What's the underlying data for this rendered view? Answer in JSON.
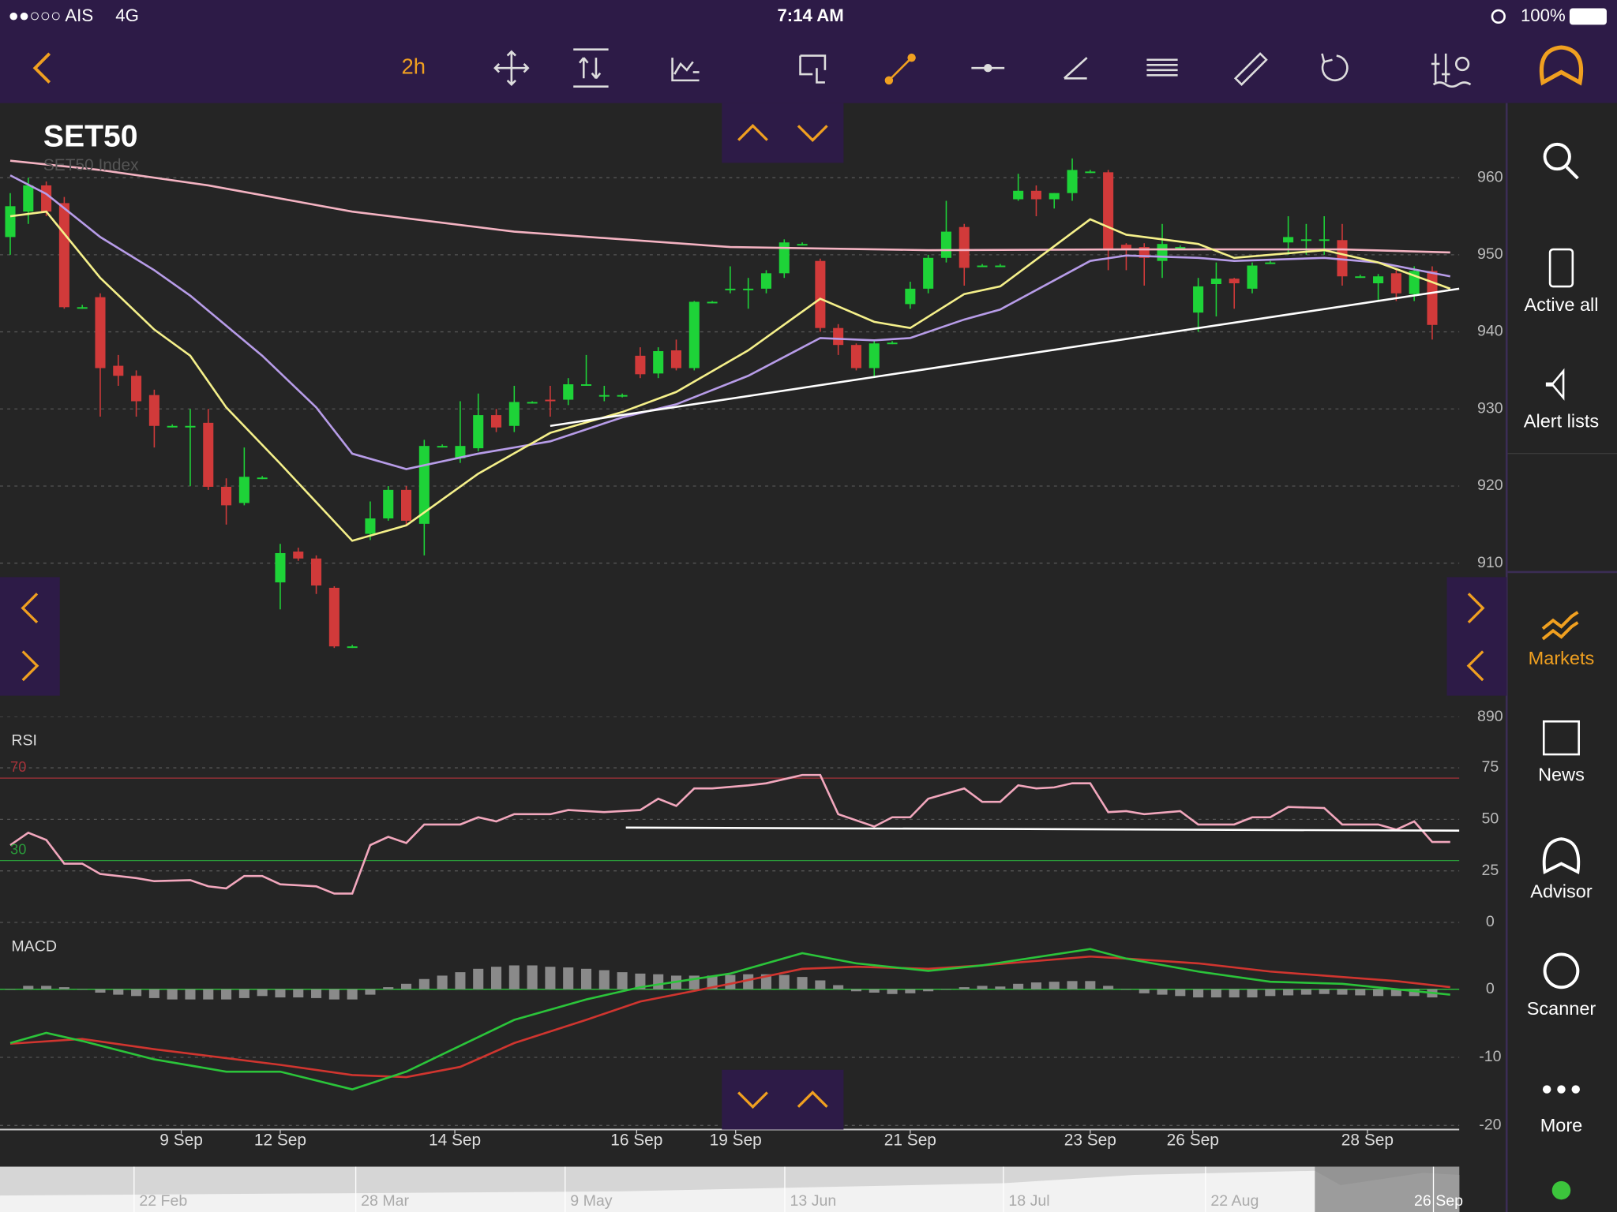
{
  "status_bar": {
    "carrier": "●●○○○ AIS",
    "network": "4G",
    "time": "7:14 AM",
    "battery": "100%"
  },
  "toolbar": {
    "interval": "2h"
  },
  "sidebar": {
    "items": [
      "Active all",
      "Alert lists",
      "Markets",
      "News",
      "Advisor",
      "Scanner",
      "More"
    ]
  },
  "navigator": {
    "labels": [
      "22 Feb",
      "28 Mar",
      "9 May",
      "13 Jun",
      "18 Jul",
      "22 Aug",
      "26 Sep"
    ]
  },
  "chart_data": [
    {
      "type": "candlestick",
      "title": "SET50",
      "subtitle": "SET50 Index",
      "ylim": [
        890,
        970
      ],
      "yticks": [
        890,
        910,
        920,
        930,
        940,
        950,
        960
      ],
      "grid": true,
      "xlim": [
        -0.57,
        80.5
      ],
      "xticks": [
        {
          "value": 9.5,
          "label": "9 Sep"
        },
        {
          "value": 15,
          "label": "12 Sep"
        },
        {
          "value": 24.7,
          "label": "14 Sep"
        },
        {
          "value": 34.8,
          "label": "16 Sep"
        },
        {
          "value": 40.3,
          "label": "19 Sep"
        },
        {
          "value": 50,
          "label": "21 Sep"
        },
        {
          "value": 60,
          "label": "23 Sep"
        },
        {
          "value": 65.7,
          "label": "26 Sep"
        },
        {
          "value": 75.4,
          "label": "28 Sep"
        }
      ],
      "up_color": "#1ed338",
      "down_color": "#d13a3a",
      "candles": [
        [
          952.3,
          958,
          950,
          956.3
        ],
        [
          955.6,
          960,
          954,
          959
        ],
        [
          959,
          959.5,
          955,
          955.6
        ],
        [
          956.7,
          957.5,
          943,
          943.2
        ],
        [
          943.2,
          943.5,
          943,
          943.2
        ],
        [
          944.5,
          945,
          929,
          935.3
        ],
        [
          935.6,
          937,
          933,
          934.3
        ],
        [
          934.3,
          935,
          929,
          931
        ],
        [
          931.8,
          932.5,
          925,
          927.8
        ],
        [
          927.8,
          928,
          927.6,
          927.8
        ],
        [
          927.6,
          930,
          920,
          927.8
        ],
        [
          928.2,
          930,
          919.5,
          919.9
        ],
        [
          919.9,
          921,
          915,
          917.5
        ],
        [
          917.8,
          925,
          917.5,
          921.2
        ],
        [
          921.1,
          921.3,
          920.9,
          921.1
        ],
        [
          907.5,
          912.5,
          904,
          911.3
        ],
        [
          911.5,
          912,
          910.3,
          910.6
        ],
        [
          910.6,
          911,
          906,
          907.1
        ],
        [
          906.8,
          907,
          899,
          899.2
        ],
        [
          899.2,
          899.4,
          899,
          899.2
        ],
        [
          913.8,
          918,
          913,
          915.8
        ],
        [
          915.8,
          920,
          915.5,
          919.5
        ],
        [
          919.5,
          920,
          915,
          915.5
        ],
        [
          915.1,
          926,
          911,
          925.2
        ],
        [
          925.2,
          925.4,
          925,
          925.2
        ],
        [
          923.6,
          931,
          923,
          925.2
        ],
        [
          924.9,
          932,
          924.5,
          929.2
        ],
        [
          929.2,
          930,
          927,
          927.6
        ],
        [
          927.8,
          933,
          927,
          930.9
        ],
        [
          930.9,
          931,
          930.7,
          930.9
        ],
        [
          931.2,
          933,
          929,
          931
        ],
        [
          931.2,
          934,
          930.5,
          933.2
        ],
        [
          933.2,
          937,
          933,
          933.2
        ],
        [
          931.8,
          933,
          931,
          931.8
        ],
        [
          931.8,
          932,
          931.5,
          931.8
        ],
        [
          936.9,
          938,
          934,
          934.5
        ],
        [
          934.6,
          938,
          934,
          937.5
        ],
        [
          937.6,
          939,
          935,
          935.3
        ],
        [
          935.3,
          944,
          935,
          943.9
        ],
        [
          943.9,
          944,
          943.7,
          943.9
        ],
        [
          945.6,
          948.5,
          945,
          945.6
        ],
        [
          945.6,
          947,
          943,
          945.6
        ],
        [
          945.6,
          948,
          945,
          947.6
        ],
        [
          947.6,
          952,
          947,
          951.6
        ],
        [
          951.4,
          951.6,
          951.2,
          951.4
        ],
        [
          949.2,
          949.5,
          940,
          940.5
        ],
        [
          940.5,
          941,
          937,
          938.3
        ],
        [
          938.3,
          938.5,
          935,
          935.3
        ],
        [
          935.3,
          939,
          934,
          938.5
        ],
        [
          938.6,
          938.8,
          938.4,
          938.6
        ],
        [
          943.6,
          946.5,
          943,
          945.6
        ],
        [
          945.6,
          950,
          945,
          949.6
        ],
        [
          949.6,
          957,
          949,
          953
        ],
        [
          953.6,
          954,
          946,
          948.3
        ],
        [
          948.6,
          948.8,
          948.4,
          948.6
        ],
        [
          948.6,
          948.8,
          948.4,
          948.6
        ],
        [
          957.2,
          960.5,
          957,
          958.3
        ],
        [
          958.3,
          959,
          955,
          957.2
        ],
        [
          957.2,
          958,
          956,
          958
        ],
        [
          958,
          962.5,
          957,
          961
        ],
        [
          960.8,
          961,
          960.6,
          960.8
        ],
        [
          960.7,
          961,
          948,
          950.6
        ],
        [
          951.3,
          951.5,
          948,
          950.6
        ],
        [
          951,
          951.5,
          946,
          949.6
        ],
        [
          949.2,
          954,
          947,
          951.4
        ],
        [
          951,
          951.2,
          950.8,
          951
        ],
        [
          942.5,
          947,
          940,
          945.9
        ],
        [
          946.2,
          949,
          942,
          946.9
        ],
        [
          946.9,
          947,
          943,
          946.3
        ],
        [
          945.6,
          949,
          945,
          948.6
        ],
        [
          949,
          949.2,
          948.8,
          949
        ],
        [
          951.6,
          955,
          950,
          952.3
        ],
        [
          952,
          954,
          950,
          952
        ],
        [
          952,
          955,
          950,
          952
        ],
        [
          951.9,
          954,
          946,
          947.2
        ],
        [
          947.2,
          947.4,
          947,
          947.2
        ],
        [
          946.3,
          947.5,
          944,
          947.2
        ],
        [
          947.6,
          948,
          944,
          945
        ],
        [
          944.9,
          948.5,
          944,
          947.9
        ],
        [
          947.9,
          948.5,
          939,
          940.9
        ]
      ],
      "lines": [
        {
          "color": "#b79ce8",
          "x": [
            0,
            2,
            5,
            8,
            10,
            14,
            17,
            19,
            22,
            26,
            30,
            34,
            37,
            41,
            45,
            48,
            50,
            53,
            55,
            60,
            62,
            66,
            68,
            73,
            76,
            80
          ],
          "values": [
            960.3,
            957.9,
            952.3,
            948,
            944.7,
            936.9,
            930.2,
            924.2,
            922.2,
            924.2,
            925.8,
            928.9,
            930.6,
            934.3,
            939.2,
            938.9,
            939.2,
            941.6,
            942.9,
            949.2,
            949.9,
            949.6,
            949.2,
            949.6,
            949,
            947.2
          ]
        },
        {
          "color": "#f4b3c2",
          "x": [
            0,
            5,
            11,
            19,
            28,
            40,
            51,
            62,
            74,
            80
          ],
          "values": [
            962.2,
            961,
            959,
            955.6,
            953,
            951,
            950.6,
            950.7,
            950.7,
            950.3
          ]
        },
        {
          "color": "#f5f08a",
          "x": [
            0,
            2,
            5,
            8,
            10,
            12,
            15,
            19,
            22,
            26,
            30,
            34,
            37,
            41,
            45,
            48,
            50,
            53,
            55,
            60,
            62,
            66,
            68,
            73,
            76,
            80
          ],
          "values": [
            955,
            955.6,
            947,
            940.3,
            936.9,
            930.2,
            922.9,
            912.9,
            914.9,
            921.6,
            926.9,
            929.6,
            932.2,
            937.6,
            944.3,
            941.3,
            940.5,
            944.9,
            945.9,
            954.6,
            952.6,
            951.4,
            949.6,
            950.6,
            949,
            945.6
          ]
        },
        {
          "color": "#ffffff",
          "x": [
            30,
            80.5
          ],
          "values": [
            927.8,
            945.6
          ]
        }
      ]
    },
    {
      "type": "line",
      "title": "RSI",
      "ylim": [
        -2.5,
        95
      ],
      "yticks": [
        0,
        25,
        50,
        75
      ],
      "grid": true,
      "xlim": [
        -0.57,
        80.5
      ],
      "levels": [
        70,
        30
      ],
      "level_colors": [
        "#a8323a",
        "#2a9a3a"
      ],
      "lines": [
        {
          "color": "#f2a7bd",
          "x": [
            0,
            1,
            2,
            3,
            4,
            5,
            7,
            8,
            10,
            11,
            12,
            13,
            14,
            15,
            17,
            18,
            19,
            20,
            21,
            22,
            23,
            25,
            26,
            27,
            28,
            30,
            31,
            33,
            35,
            36,
            37,
            38,
            39,
            41,
            42,
            44,
            45,
            46,
            48,
            49,
            50,
            51,
            53,
            54,
            55,
            56,
            57,
            58,
            59,
            60,
            61,
            62,
            63,
            65,
            66,
            68,
            69,
            70,
            71,
            73,
            74,
            76,
            77,
            78,
            79,
            80
          ],
          "values": [
            37.5,
            43.5,
            40,
            28.5,
            28.5,
            23.5,
            21.5,
            20,
            20.5,
            17.5,
            16.5,
            22.5,
            22.5,
            18.5,
            17.5,
            14,
            14,
            37.5,
            41.5,
            38.5,
            47.5,
            47.5,
            51,
            49,
            52.5,
            52.5,
            54.5,
            53.5,
            54.5,
            60,
            56.5,
            65,
            65,
            66.5,
            67.5,
            71.5,
            71.5,
            52.5,
            46.5,
            51,
            51,
            60,
            65,
            58.5,
            58.5,
            66.5,
            65,
            65.5,
            67.5,
            67.5,
            53.5,
            54,
            52.5,
            54,
            47.5,
            47.5,
            51,
            51,
            56,
            55.5,
            47.5,
            47.5,
            45,
            49,
            39,
            39
          ]
        },
        {
          "color": "#ffffff",
          "x": [
            34.2,
            80.5
          ],
          "values": [
            46,
            44.5
          ]
        }
      ]
    },
    {
      "type": "line",
      "title": "MACD",
      "ylim": [
        -20.6,
        8.3
      ],
      "yticks": [
        -20,
        -10,
        0
      ],
      "grid": true,
      "xlim": [
        -0.57,
        80.5
      ],
      "zero_color": "#2bc43a",
      "histogram_color": "#8a8a8a",
      "histogram": [
        0,
        0.5,
        0.5,
        0.3,
        0,
        -0.5,
        -0.8,
        -1,
        -1.3,
        -1.5,
        -1.5,
        -1.5,
        -1.5,
        -1.3,
        -1,
        -1.2,
        -1.2,
        -1.3,
        -1.5,
        -1.5,
        -0.8,
        0.3,
        0.8,
        1.5,
        2,
        2.5,
        3,
        3.3,
        3.5,
        3.5,
        3.3,
        3.2,
        3,
        2.8,
        2.5,
        2.3,
        2.2,
        2,
        2,
        2,
        2.1,
        2.2,
        2.2,
        2.1,
        1.8,
        1.3,
        0.6,
        -0.3,
        -0.5,
        -0.7,
        -0.6,
        -0.3,
        0,
        0.3,
        0.5,
        0.4,
        0.8,
        1,
        1.1,
        1.2,
        1.2,
        0.5,
        0,
        -0.6,
        -0.8,
        -1,
        -1.2,
        -1.2,
        -1.2,
        -1.2,
        -1,
        -0.9,
        -0.8,
        -0.7,
        -0.8,
        -0.9,
        -1,
        -1,
        -1,
        -1.2
      ],
      "lines": [
        {
          "color": "#d0352f",
          "x": [
            0,
            4,
            8,
            15,
            19,
            22,
            25,
            28,
            32,
            35,
            40,
            44,
            47,
            51,
            54,
            60,
            62,
            66,
            70,
            74,
            77,
            80
          ],
          "values": [
            -8,
            -7.3,
            -8.8,
            -11.1,
            -12.6,
            -12.9,
            -11.4,
            -7.9,
            -4.5,
            -1.8,
            0.8,
            3,
            3.3,
            3,
            3.5,
            4.8,
            4.5,
            3.8,
            2.6,
            1.8,
            1.2,
            0.3
          ]
        },
        {
          "color": "#2bc43a",
          "x": [
            0,
            2,
            4,
            8,
            12,
            15,
            19,
            22,
            25,
            28,
            32,
            35,
            40,
            44,
            47,
            51,
            54,
            60,
            62,
            66,
            70,
            74,
            77,
            80
          ],
          "values": [
            -7.9,
            -6.4,
            -7.6,
            -10.3,
            -12.1,
            -12.1,
            -14.7,
            -12.1,
            -8.3,
            -4.5,
            -1.5,
            0.3,
            2.3,
            5.3,
            3.8,
            2.7,
            3.5,
            5.9,
            4.5,
            2.6,
            1.1,
            0.8,
            0,
            -0.8
          ]
        }
      ]
    }
  ]
}
